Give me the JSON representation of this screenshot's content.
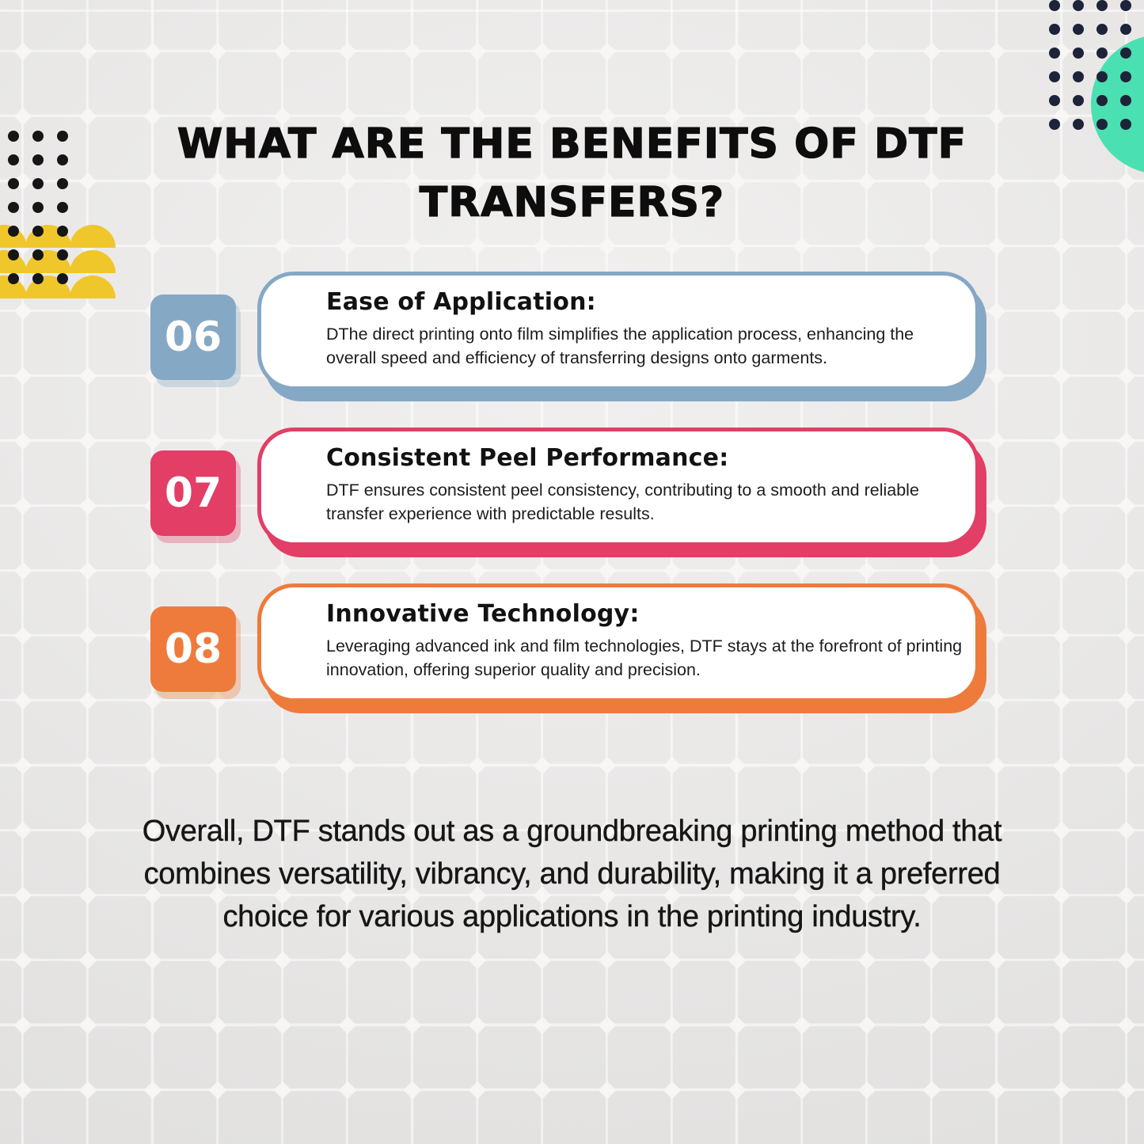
{
  "title": "WHAT ARE THE BENEFITS OF DTF TRANSFERS?",
  "cards": [
    {
      "number": "06",
      "heading": "Ease of Application:",
      "body": "DThe direct printing onto film simplifies the application process, enhancing the overall speed and efficiency of transferring designs onto garments.",
      "accent": "#85a8c5"
    },
    {
      "number": "07",
      "heading": "Consistent Peel Performance:",
      "body": "DTF ensures consistent peel consistency, contributing to a smooth and reliable transfer experience with predictable results.",
      "accent": "#e23e66"
    },
    {
      "number": "08",
      "heading": "Innovative Technology:",
      "body": "Leveraging advanced ink and film technologies, DTF stays at the forefront of printing innovation, offering superior quality and precision.",
      "accent": "#ee7b3b"
    }
  ],
  "footer": "Overall, DTF stands out as a groundbreaking printing method that combines versatility, vibrancy, and durability, making it a preferred choice for various applications in the printing industry.",
  "colors": {
    "teal_circle": "#4be0b2",
    "yellow_scallop": "#f0c72b",
    "navy_dot": "#1d2338",
    "black_dot": "#161616",
    "title_text": "#0d0d0d",
    "body_text": "#1d1d1d"
  }
}
